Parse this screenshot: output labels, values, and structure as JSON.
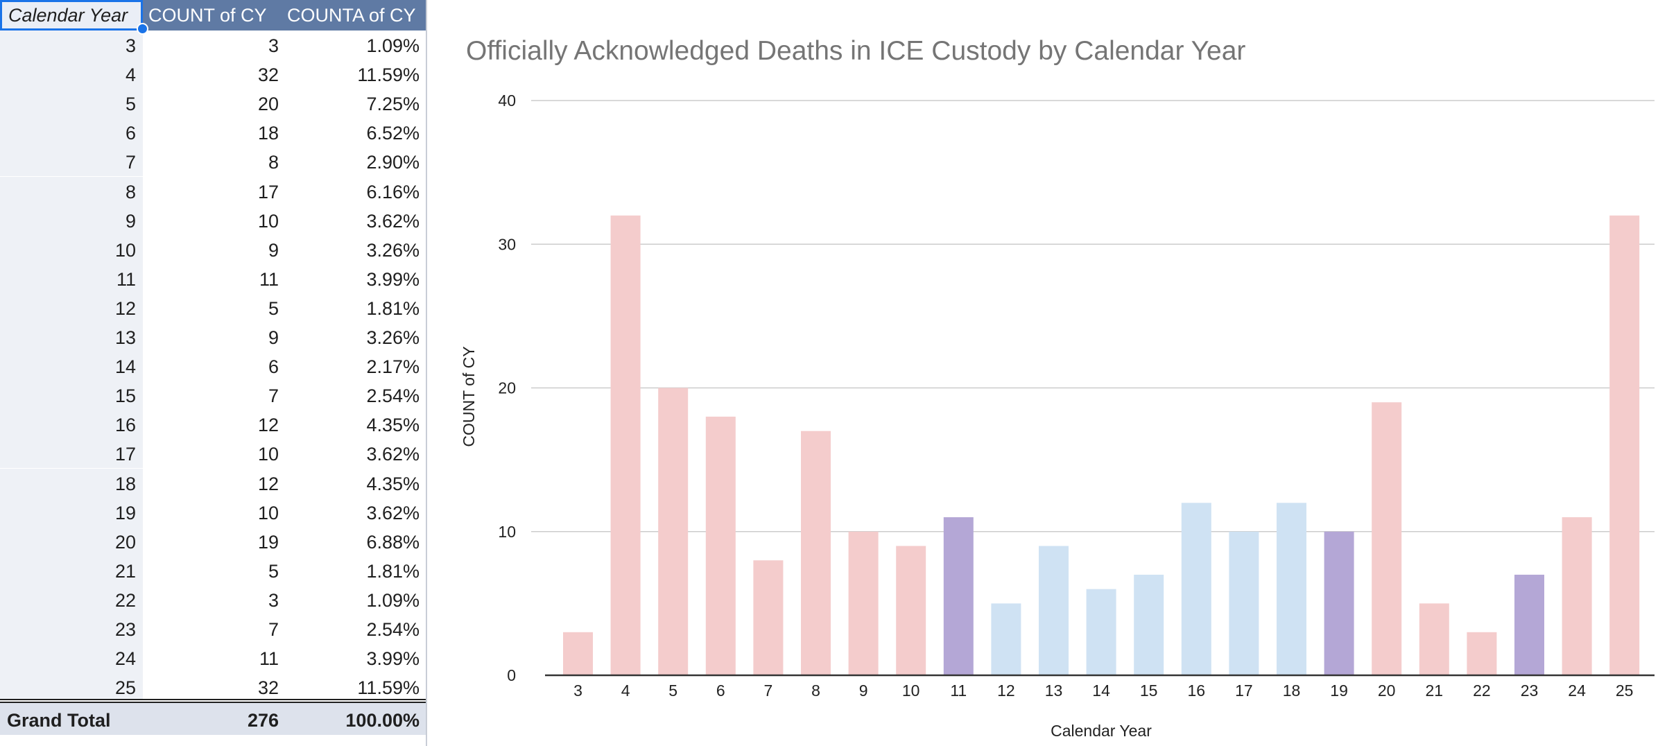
{
  "pivot": {
    "headers": {
      "calendar_year": "Calendar Year",
      "count": "COUNT of CY",
      "counta": "COUNTA of CY"
    },
    "rows": [
      {
        "year": "3",
        "count": "3",
        "pct": "1.09%"
      },
      {
        "year": "4",
        "count": "32",
        "pct": "11.59%"
      },
      {
        "year": "5",
        "count": "20",
        "pct": "7.25%"
      },
      {
        "year": "6",
        "count": "18",
        "pct": "6.52%"
      },
      {
        "year": "7",
        "count": "8",
        "pct": "2.90%"
      },
      {
        "year": "8",
        "count": "17",
        "pct": "6.16%"
      },
      {
        "year": "9",
        "count": "10",
        "pct": "3.62%"
      },
      {
        "year": "10",
        "count": "9",
        "pct": "3.26%"
      },
      {
        "year": "11",
        "count": "11",
        "pct": "3.99%"
      },
      {
        "year": "12",
        "count": "5",
        "pct": "1.81%"
      },
      {
        "year": "13",
        "count": "9",
        "pct": "3.26%"
      },
      {
        "year": "14",
        "count": "6",
        "pct": "2.17%"
      },
      {
        "year": "15",
        "count": "7",
        "pct": "2.54%"
      },
      {
        "year": "16",
        "count": "12",
        "pct": "4.35%"
      },
      {
        "year": "17",
        "count": "10",
        "pct": "3.62%"
      },
      {
        "year": "18",
        "count": "12",
        "pct": "4.35%"
      },
      {
        "year": "19",
        "count": "10",
        "pct": "3.62%"
      },
      {
        "year": "20",
        "count": "19",
        "pct": "6.88%"
      },
      {
        "year": "21",
        "count": "5",
        "pct": "1.81%"
      },
      {
        "year": "22",
        "count": "3",
        "pct": "1.09%"
      },
      {
        "year": "23",
        "count": "7",
        "pct": "2.54%"
      },
      {
        "year": "24",
        "count": "11",
        "pct": "3.99%"
      },
      {
        "year": "25",
        "count": "32",
        "pct": "11.59%"
      }
    ],
    "total": {
      "label": "Grand Total",
      "count": "276",
      "pct": "100.00%"
    }
  },
  "colors": {
    "header_bg": "#5f7aa4",
    "pink": "#f4cccc",
    "blue": "#cfe2f3",
    "purple": "#b4a7d6",
    "grid": "#cccccc"
  },
  "chart_data": {
    "type": "bar",
    "title": "Officially Acknowledged Deaths in ICE Custody by Calendar Year",
    "xlabel": "Calendar Year",
    "ylabel": "COUNT of CY",
    "ylim": [
      0,
      40
    ],
    "yticks": [
      "0",
      "10",
      "20",
      "30",
      "40"
    ],
    "grid": true,
    "categories": [
      "3",
      "4",
      "5",
      "6",
      "7",
      "8",
      "9",
      "10",
      "11",
      "12",
      "13",
      "14",
      "15",
      "16",
      "17",
      "18",
      "19",
      "20",
      "21",
      "22",
      "23",
      "24",
      "25"
    ],
    "values": [
      3,
      32,
      20,
      18,
      8,
      17,
      10,
      9,
      11,
      5,
      9,
      6,
      7,
      12,
      10,
      12,
      10,
      19,
      5,
      3,
      7,
      11,
      32
    ],
    "bar_colors": [
      "pink",
      "pink",
      "pink",
      "pink",
      "pink",
      "pink",
      "pink",
      "pink",
      "purple",
      "blue",
      "blue",
      "blue",
      "blue",
      "blue",
      "blue",
      "blue",
      "purple",
      "pink",
      "pink",
      "pink",
      "purple",
      "pink",
      "pink"
    ]
  }
}
